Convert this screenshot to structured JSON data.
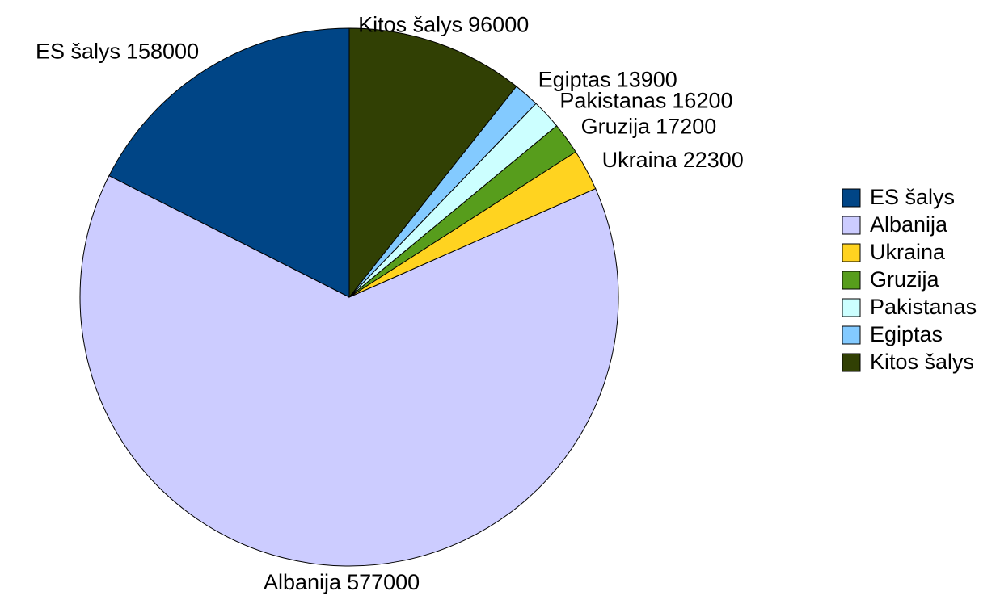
{
  "chart_data": {
    "type": "pie",
    "categories": [
      "ES šalys",
      "Albanija",
      "Ukraina",
      "Gruzija",
      "Pakistanas",
      "Egiptas",
      "Kitos šalys"
    ],
    "values": [
      158000,
      577000,
      22300,
      17200,
      16200,
      13900,
      96000
    ],
    "colors": [
      "#004586",
      "#ccccff",
      "#ffd320",
      "#579d1c",
      "#ccffff",
      "#83caff",
      "#314004"
    ],
    "legend": "right"
  }
}
